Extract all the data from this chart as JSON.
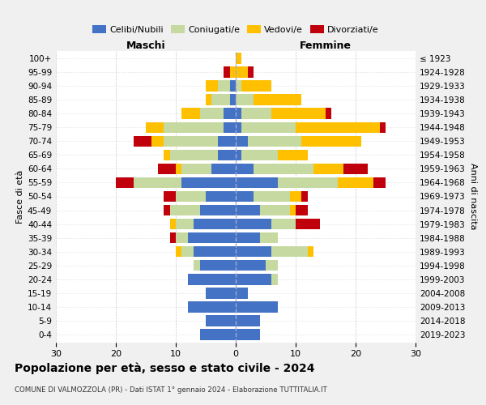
{
  "age_groups": [
    "0-4",
    "5-9",
    "10-14",
    "15-19",
    "20-24",
    "25-29",
    "30-34",
    "35-39",
    "40-44",
    "45-49",
    "50-54",
    "55-59",
    "60-64",
    "65-69",
    "70-74",
    "75-79",
    "80-84",
    "85-89",
    "90-94",
    "95-99",
    "100+"
  ],
  "birth_years": [
    "2019-2023",
    "2014-2018",
    "2009-2013",
    "2004-2008",
    "1999-2003",
    "1994-1998",
    "1989-1993",
    "1984-1988",
    "1979-1983",
    "1974-1978",
    "1969-1973",
    "1964-1968",
    "1959-1963",
    "1954-1958",
    "1949-1953",
    "1944-1948",
    "1939-1943",
    "1934-1938",
    "1929-1933",
    "1924-1928",
    "≤ 1923"
  ],
  "colors": {
    "celibe": "#4472c4",
    "coniugato": "#c6d9a0",
    "vedovo": "#ffc000",
    "divorziato": "#c0000b"
  },
  "maschi": {
    "celibe": [
      6,
      5,
      8,
      5,
      8,
      6,
      7,
      8,
      7,
      6,
      5,
      9,
      4,
      3,
      3,
      2,
      2,
      1,
      1,
      0,
      0
    ],
    "coniugato": [
      0,
      0,
      0,
      0,
      0,
      1,
      2,
      2,
      3,
      5,
      5,
      8,
      5,
      8,
      9,
      10,
      4,
      3,
      2,
      0,
      0
    ],
    "vedovo": [
      0,
      0,
      0,
      0,
      0,
      0,
      1,
      0,
      1,
      0,
      0,
      0,
      1,
      1,
      2,
      3,
      3,
      1,
      2,
      1,
      0
    ],
    "divorziato": [
      0,
      0,
      0,
      0,
      0,
      0,
      0,
      1,
      0,
      1,
      2,
      3,
      3,
      0,
      3,
      0,
      0,
      0,
      0,
      1,
      0
    ]
  },
  "femmine": {
    "celibe": [
      4,
      4,
      7,
      2,
      6,
      5,
      6,
      4,
      6,
      4,
      3,
      7,
      3,
      1,
      2,
      1,
      1,
      0,
      0,
      0,
      0
    ],
    "coniugato": [
      0,
      0,
      0,
      0,
      1,
      2,
      6,
      3,
      4,
      5,
      6,
      10,
      10,
      6,
      9,
      9,
      5,
      3,
      1,
      0,
      0
    ],
    "vedovo": [
      0,
      0,
      0,
      0,
      0,
      0,
      1,
      0,
      0,
      1,
      2,
      6,
      5,
      5,
      10,
      14,
      9,
      8,
      5,
      2,
      1
    ],
    "divorziato": [
      0,
      0,
      0,
      0,
      0,
      0,
      0,
      0,
      4,
      2,
      1,
      2,
      4,
      0,
      0,
      1,
      1,
      0,
      0,
      1,
      0
    ]
  },
  "xlim": 30,
  "title": "Popolazione per età, sesso e stato civile - 2024",
  "subtitle": "COMUNE DI VALMOZZOLA (PR) - Dati ISTAT 1° gennaio 2024 - Elaborazione TUTTITALIA.IT",
  "xlabel_left": "Maschi",
  "xlabel_right": "Femmine",
  "ylabel_left": "Fasce di età",
  "ylabel_right": "Anni di nascita",
  "legend_labels": [
    "Celibi/Nubili",
    "Coniugati/e",
    "Vedovi/e",
    "Divorziati/e"
  ],
  "bg_color": "#f0f0f0",
  "plot_bg": "#ffffff"
}
